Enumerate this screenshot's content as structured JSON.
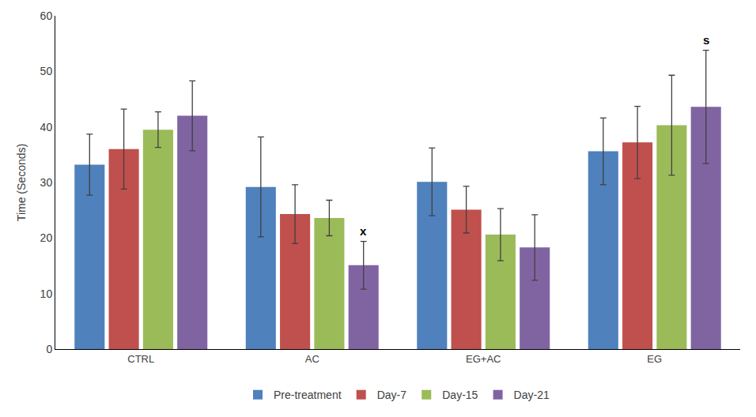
{
  "chart_data": {
    "type": "bar",
    "categories": [
      "CTRL",
      "AC",
      "EG+AC",
      "EG"
    ],
    "y_label": "Time (Seconds)",
    "ylim": [
      0,
      60
    ],
    "yticks": [
      0,
      10,
      20,
      30,
      40,
      50,
      60
    ],
    "grid": false,
    "legend": "bottom",
    "series": [
      {
        "name": "Pre-treatment",
        "color": "#4f81bd",
        "values": [
          33.2,
          29.2,
          30.1,
          35.6
        ],
        "errors": [
          5.5,
          9.0,
          6.1,
          6.0
        ]
      },
      {
        "name": "Day-7",
        "color": "#c0504d",
        "values": [
          36.0,
          24.3,
          25.1,
          37.2
        ],
        "errors": [
          7.2,
          5.3,
          4.2,
          6.5
        ]
      },
      {
        "name": "Day-15",
        "color": "#9bbb59",
        "values": [
          39.5,
          23.6,
          20.6,
          40.3
        ],
        "errors": [
          3.2,
          3.2,
          4.7,
          9.0
        ]
      },
      {
        "name": "Day-21",
        "color": "#8064a2",
        "values": [
          42.0,
          15.1,
          18.3,
          43.6
        ],
        "errors": [
          6.3,
          4.3,
          5.9,
          10.2
        ]
      }
    ],
    "annotations": [
      {
        "text": "x",
        "category": "AC",
        "series": "Day-21"
      },
      {
        "text": "s",
        "category": "EG",
        "series": "Day-21"
      }
    ]
  }
}
